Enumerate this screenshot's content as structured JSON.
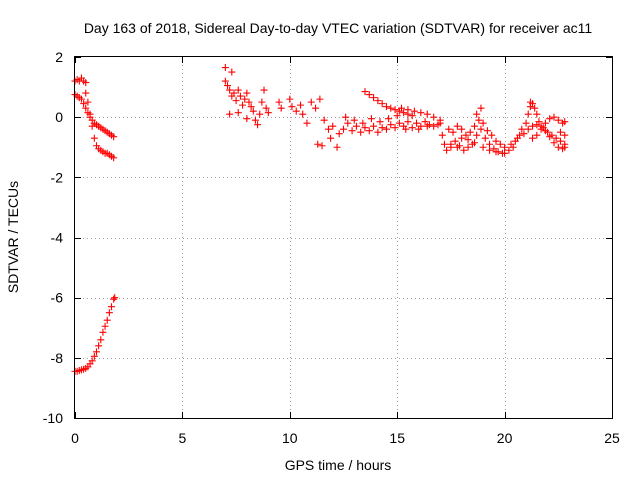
{
  "chart_data": {
    "type": "scatter",
    "title": "Day 163 of 2018, Sidereal Day-to-day VTEC variation (SDTVAR) for receiver ac11",
    "xlabel": "GPS time / hours",
    "ylabel": "SDTVAR / TECUs",
    "xlim": [
      0,
      25
    ],
    "ylim": [
      -10,
      2
    ],
    "x_ticks": [
      0,
      5,
      10,
      15,
      20,
      25
    ],
    "y_ticks": [
      -10,
      -8,
      -6,
      -4,
      -2,
      0,
      2
    ],
    "x_tick_labels": [
      "0",
      "5",
      "10",
      "15",
      "20",
      "25"
    ],
    "y_tick_labels": [
      "-10",
      "-8",
      "-6",
      "-4",
      "-2",
      "0",
      "2"
    ],
    "grid": true,
    "marker": "+",
    "color": "#ff0000",
    "series": [
      {
        "name": "SDTVAR",
        "points": [
          [
            0.0,
            1.2
          ],
          [
            0.1,
            1.25
          ],
          [
            0.2,
            1.2
          ],
          [
            0.3,
            1.3
          ],
          [
            0.4,
            1.2
          ],
          [
            0.5,
            1.15
          ],
          [
            0.0,
            0.75
          ],
          [
            0.1,
            0.7
          ],
          [
            0.2,
            0.65
          ],
          [
            0.3,
            0.6
          ],
          [
            0.4,
            0.45
          ],
          [
            0.5,
            0.3
          ],
          [
            0.6,
            0.15
          ],
          [
            0.7,
            0.0
          ],
          [
            0.8,
            -0.1
          ],
          [
            0.9,
            -0.2
          ],
          [
            1.0,
            -0.25
          ],
          [
            1.1,
            -0.3
          ],
          [
            1.2,
            -0.35
          ],
          [
            1.3,
            -0.4
          ],
          [
            1.4,
            -0.45
          ],
          [
            1.5,
            -0.5
          ],
          [
            1.6,
            -0.55
          ],
          [
            1.7,
            -0.6
          ],
          [
            1.8,
            -0.65
          ],
          [
            0.5,
            0.8
          ],
          [
            0.6,
            0.5
          ],
          [
            0.7,
            0.1
          ],
          [
            0.8,
            -0.3
          ],
          [
            0.9,
            -0.7
          ],
          [
            1.0,
            -0.95
          ],
          [
            1.1,
            -1.05
          ],
          [
            1.2,
            -1.1
          ],
          [
            1.3,
            -1.15
          ],
          [
            1.4,
            -1.2
          ],
          [
            1.5,
            -1.2
          ],
          [
            1.6,
            -1.25
          ],
          [
            1.7,
            -1.3
          ],
          [
            1.8,
            -1.35
          ],
          [
            0.0,
            -8.45
          ],
          [
            0.1,
            -8.45
          ],
          [
            0.2,
            -8.42
          ],
          [
            0.3,
            -8.4
          ],
          [
            0.4,
            -8.38
          ],
          [
            0.5,
            -8.35
          ],
          [
            0.6,
            -8.3
          ],
          [
            0.7,
            -8.2
          ],
          [
            0.8,
            -8.1
          ],
          [
            0.9,
            -7.95
          ],
          [
            1.0,
            -7.8
          ],
          [
            1.1,
            -7.6
          ],
          [
            1.2,
            -7.4
          ],
          [
            1.3,
            -7.15
          ],
          [
            1.4,
            -6.95
          ],
          [
            1.5,
            -6.75
          ],
          [
            1.6,
            -6.5
          ],
          [
            1.7,
            -6.3
          ],
          [
            1.8,
            -6.05
          ],
          [
            1.85,
            -6.0
          ],
          [
            7.0,
            1.65
          ],
          [
            7.3,
            1.5
          ],
          [
            7.0,
            1.2
          ],
          [
            7.1,
            1.05
          ],
          [
            7.2,
            0.9
          ],
          [
            7.3,
            0.7
          ],
          [
            7.4,
            0.8
          ],
          [
            7.5,
            0.55
          ],
          [
            7.6,
            0.9
          ],
          [
            7.7,
            0.7
          ],
          [
            7.8,
            0.4
          ],
          [
            7.9,
            0.6
          ],
          [
            8.0,
            0.8
          ],
          [
            8.1,
            0.5
          ],
          [
            8.2,
            0.35
          ],
          [
            8.3,
            0.2
          ],
          [
            8.4,
            -0.1
          ],
          [
            8.5,
            -0.25
          ],
          [
            8.6,
            0.1
          ],
          [
            8.7,
            0.5
          ],
          [
            8.8,
            0.9
          ],
          [
            8.9,
            0.3
          ],
          [
            9.0,
            0.15
          ],
          [
            7.2,
            0.1
          ],
          [
            7.6,
            0.15
          ],
          [
            8.0,
            -0.05
          ],
          [
            9.5,
            0.5
          ],
          [
            9.6,
            0.3
          ],
          [
            10.0,
            0.6
          ],
          [
            10.1,
            0.35
          ],
          [
            10.3,
            0.2
          ],
          [
            10.5,
            0.4
          ],
          [
            10.6,
            0.1
          ],
          [
            10.8,
            -0.2
          ],
          [
            11.0,
            0.5
          ],
          [
            11.2,
            0.3
          ],
          [
            11.4,
            0.6
          ],
          [
            11.6,
            -0.1
          ],
          [
            11.8,
            -0.4
          ],
          [
            11.3,
            -0.9
          ],
          [
            11.5,
            -0.95
          ],
          [
            11.9,
            -0.7
          ],
          [
            12.2,
            -1.0
          ],
          [
            12.0,
            -0.3
          ],
          [
            12.3,
            -0.55
          ],
          [
            12.5,
            -0.4
          ],
          [
            12.7,
            -0.2
          ],
          [
            12.9,
            -0.45
          ],
          [
            13.1,
            -0.3
          ],
          [
            13.3,
            -0.5
          ],
          [
            13.5,
            -0.35
          ],
          [
            13.7,
            -0.45
          ],
          [
            13.9,
            -0.3
          ],
          [
            14.1,
            -0.5
          ],
          [
            14.3,
            -0.35
          ],
          [
            14.5,
            -0.4
          ],
          [
            14.7,
            -0.25
          ],
          [
            14.9,
            -0.35
          ],
          [
            15.1,
            -0.2
          ],
          [
            15.3,
            -0.3
          ],
          [
            15.5,
            -0.15
          ],
          [
            15.7,
            -0.35
          ],
          [
            15.9,
            -0.2
          ],
          [
            16.1,
            -0.3
          ],
          [
            16.3,
            -0.15
          ],
          [
            16.5,
            -0.25
          ],
          [
            16.7,
            -0.3
          ],
          [
            16.9,
            -0.25
          ],
          [
            17.0,
            -0.2
          ],
          [
            12.6,
            0.0
          ],
          [
            13.0,
            -0.1
          ],
          [
            13.4,
            -0.2
          ],
          [
            13.8,
            -0.05
          ],
          [
            14.2,
            -0.15
          ],
          [
            14.6,
            -0.05
          ],
          [
            15.0,
            0.05
          ],
          [
            13.5,
            0.85
          ],
          [
            13.7,
            0.75
          ],
          [
            13.9,
            0.65
          ],
          [
            14.1,
            0.55
          ],
          [
            14.3,
            0.45
          ],
          [
            14.5,
            0.35
          ],
          [
            14.7,
            0.3
          ],
          [
            14.9,
            0.25
          ],
          [
            15.1,
            0.2
          ],
          [
            15.3,
            0.15
          ],
          [
            15.5,
            0.1
          ],
          [
            15.7,
            0.05
          ],
          [
            15.2,
            0.3
          ],
          [
            15.5,
            0.25
          ],
          [
            15.8,
            0.2
          ],
          [
            16.1,
            0.15
          ],
          [
            16.4,
            0.1
          ],
          [
            16.7,
            0.0
          ],
          [
            17.0,
            -0.1
          ],
          [
            16.0,
            -0.4
          ],
          [
            16.4,
            -0.3
          ],
          [
            15.4,
            -0.4
          ],
          [
            17.1,
            -0.6
          ],
          [
            17.2,
            -0.9
          ],
          [
            17.3,
            -1.1
          ],
          [
            17.5,
            -1.0
          ],
          [
            17.7,
            -0.8
          ],
          [
            17.9,
            -0.95
          ],
          [
            18.1,
            -1.1
          ],
          [
            18.3,
            -1.0
          ],
          [
            18.5,
            -0.9
          ],
          [
            18.7,
            -0.6
          ],
          [
            18.9,
            -0.4
          ],
          [
            19.1,
            -0.7
          ],
          [
            19.3,
            -0.9
          ],
          [
            19.5,
            -1.05
          ],
          [
            19.7,
            -1.15
          ],
          [
            19.9,
            -1.2
          ],
          [
            17.4,
            -0.4
          ],
          [
            17.6,
            -0.5
          ],
          [
            17.8,
            -0.3
          ],
          [
            18.0,
            -0.4
          ],
          [
            18.2,
            -0.6
          ],
          [
            18.4,
            -0.5
          ],
          [
            18.6,
            -0.3
          ],
          [
            18.8,
            -0.1
          ],
          [
            18.9,
            0.3
          ],
          [
            18.7,
            0.1
          ],
          [
            19.0,
            -0.2
          ],
          [
            19.2,
            -0.45
          ],
          [
            19.4,
            -0.6
          ],
          [
            19.6,
            -0.8
          ],
          [
            19.8,
            -0.9
          ],
          [
            20.0,
            -1.0
          ],
          [
            17.5,
            -0.9
          ],
          [
            17.8,
            -1.0
          ],
          [
            18.0,
            -0.7
          ],
          [
            18.3,
            -0.75
          ],
          [
            18.6,
            -0.85
          ],
          [
            19.0,
            -1.0
          ],
          [
            19.3,
            -1.1
          ],
          [
            19.6,
            -1.15
          ],
          [
            20.0,
            -1.2
          ],
          [
            20.2,
            -1.1
          ],
          [
            20.3,
            -0.9
          ],
          [
            20.5,
            -0.8
          ],
          [
            20.7,
            -0.6
          ],
          [
            20.8,
            -0.4
          ],
          [
            21.0,
            -0.2
          ],
          [
            21.1,
            0.1
          ],
          [
            21.2,
            0.35
          ],
          [
            21.3,
            0.45
          ],
          [
            21.2,
            0.5
          ],
          [
            21.4,
            0.3
          ],
          [
            21.5,
            0.1
          ],
          [
            21.6,
            -0.15
          ],
          [
            21.8,
            -0.35
          ],
          [
            22.0,
            -0.5
          ],
          [
            22.2,
            -0.6
          ],
          [
            22.4,
            -0.7
          ],
          [
            22.6,
            -0.8
          ],
          [
            22.8,
            -0.9
          ],
          [
            20.4,
            -1.0
          ],
          [
            20.6,
            -0.7
          ],
          [
            20.9,
            -0.55
          ],
          [
            21.1,
            -0.4
          ],
          [
            21.3,
            -0.3
          ],
          [
            21.5,
            -0.25
          ],
          [
            21.7,
            -0.3
          ],
          [
            21.9,
            -0.45
          ],
          [
            22.1,
            -0.65
          ],
          [
            22.3,
            -0.85
          ],
          [
            22.5,
            -1.0
          ],
          [
            22.7,
            -1.05
          ],
          [
            22.8,
            -1.0
          ],
          [
            21.3,
            -0.7
          ],
          [
            21.5,
            -0.6
          ],
          [
            21.7,
            -0.4
          ],
          [
            21.9,
            -0.2
          ],
          [
            22.1,
            -0.05
          ],
          [
            22.3,
            0.0
          ],
          [
            22.5,
            -0.1
          ],
          [
            22.7,
            -0.2
          ],
          [
            22.8,
            -0.15
          ],
          [
            22.6,
            -0.5
          ],
          [
            22.8,
            -0.6
          ]
        ]
      }
    ]
  }
}
